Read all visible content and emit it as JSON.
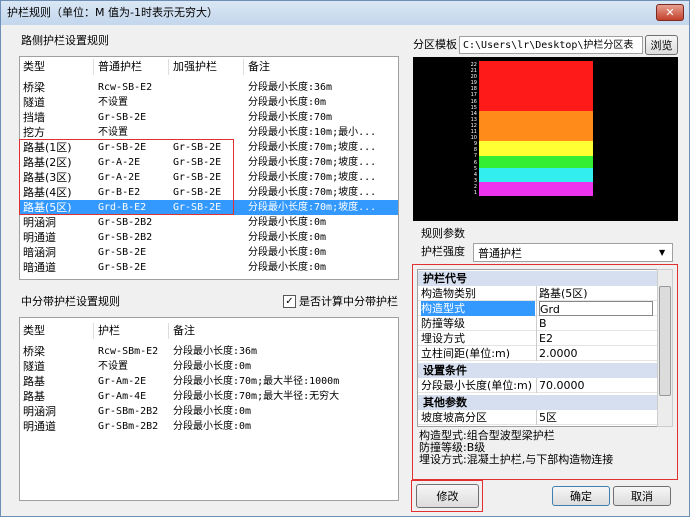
{
  "title": "护栏规则（单位：M 值为-1时表示无穷大）",
  "roadside": {
    "title": "路侧护栏设置规则",
    "columns": [
      "类型",
      "普通护栏",
      "加强护栏",
      "备注"
    ],
    "rows": [
      [
        "桥梁",
        "Rcw-SB-E2",
        null,
        "分段最小长度:36m"
      ],
      [
        "隧道",
        "不设置",
        null,
        "分段最小长度:0m"
      ],
      [
        "挡墙",
        "Gr-SB-2E",
        null,
        "分段最小长度:70m"
      ],
      [
        "挖方",
        "不设置",
        null,
        "分段最小长度:10m;最小..."
      ],
      [
        "路基(1区)",
        "Gr-SB-2E",
        "Gr-SB-2E",
        "分段最小长度:70m;坡度..."
      ],
      [
        "路基(2区)",
        "Gr-A-2E",
        "Gr-SB-2E",
        "分段最小长度:70m;坡度..."
      ],
      [
        "路基(3区)",
        "Gr-A-2E",
        "Gr-SB-2E",
        "分段最小长度:70m;坡度..."
      ],
      [
        "路基(4区)",
        "Gr-B-E2",
        "Gr-SB-2E",
        "分段最小长度:70m;坡度..."
      ],
      [
        "路基(5区)",
        "Grd-B-E2",
        "Gr-SB-2E",
        "分段最小长度:70m;坡度..."
      ],
      [
        "明涵洞",
        "Gr-SB-2B2",
        null,
        "分段最小长度:0m"
      ],
      [
        "明通道",
        "Gr-SB-2B2",
        null,
        "分段最小长度:0m"
      ],
      [
        "暗涵洞",
        "Gr-SB-2E",
        null,
        "分段最小长度:0m"
      ],
      [
        "暗通道",
        "Gr-SB-2E",
        null,
        "分段最小长度:0m"
      ]
    ]
  },
  "median": {
    "title": "中分带护栏设置规则",
    "checkbox": "是否计算中分带护栏",
    "columns": [
      "类型",
      "护栏",
      "备注"
    ],
    "rows": [
      [
        "桥梁",
        "Rcw-SBm-E2",
        "分段最小长度:36m"
      ],
      [
        "隧道",
        "不设置",
        "分段最小长度:0m"
      ],
      [
        "路基",
        "Gr-Am-2E",
        "分段最小长度:70m;最大半径:1000m"
      ],
      [
        "路基",
        "Gr-Am-4E",
        "分段最小长度:70m;最大半径:无穷大"
      ],
      [
        "明涵洞",
        "Gr-SBm-2B2",
        "分段最小长度:0m"
      ],
      [
        "明通道",
        "Gr-SBm-2B2",
        "分段最小长度:0m"
      ]
    ]
  },
  "template": {
    "label": "分区模板",
    "path": "C:\\Users\\lr\\Desktop\\护栏分区表",
    "button": "浏览",
    "yticks": [
      1,
      2,
      3,
      4,
      5,
      6,
      7,
      8,
      9,
      10,
      11,
      12,
      13,
      14,
      15,
      16,
      17,
      18,
      19,
      20,
      21,
      22
    ]
  },
  "params": {
    "title": "规则参数",
    "strength_label": "护栏强度",
    "strength": "普通护栏",
    "groups": [
      {
        "name": "护栏代号",
        "rows": [
          [
            "构造物类别",
            "路基(5区)"
          ],
          [
            "构造型式",
            "Grd"
          ],
          [
            "防撞等级",
            "B"
          ],
          [
            "埋设方式",
            "E2"
          ],
          [
            "立柱间距(单位:m)",
            "2.0000"
          ]
        ]
      },
      {
        "name": "设置条件",
        "rows": [
          [
            "分段最小长度(单位:m)",
            "70.0000"
          ]
        ]
      },
      {
        "name": "其他参数",
        "rows": [
          [
            "坡度坡高分区",
            "5区"
          ]
        ]
      }
    ],
    "description": [
      "构造型式:组合型波型梁护栏",
      "防撞等级:B级",
      "埋设方式:混凝土护栏,与下部构造物连接"
    ]
  },
  "buttons": {
    "modify": "修改",
    "ok": "确定",
    "cancel": "取消"
  }
}
